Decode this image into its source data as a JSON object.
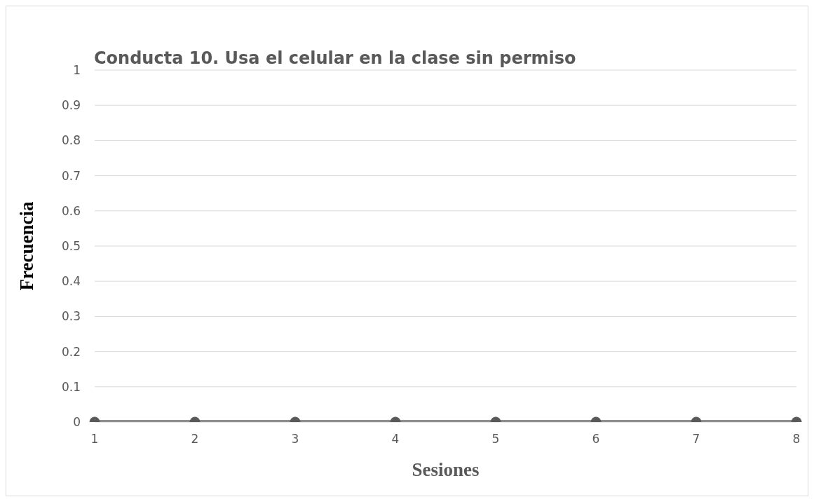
{
  "chart_data": {
    "type": "line",
    "title": "Conducta 10. Usa el celular en la clase sin permiso",
    "xlabel": "Sesiones",
    "ylabel": "Frecuencia",
    "categories": [
      "1",
      "2",
      "3",
      "4",
      "5",
      "6",
      "7",
      "8"
    ],
    "series": [
      {
        "color": "#595959",
        "values": [
          0,
          0,
          0,
          0,
          0,
          0,
          0,
          0
        ]
      }
    ],
    "ylim": [
      0,
      1
    ],
    "yticks": [
      0,
      0.1,
      0.2,
      0.3,
      0.4,
      0.5,
      0.6,
      0.7,
      0.8,
      0.9,
      1
    ],
    "grid": "y",
    "marker": "circle",
    "line_style": "solid"
  }
}
